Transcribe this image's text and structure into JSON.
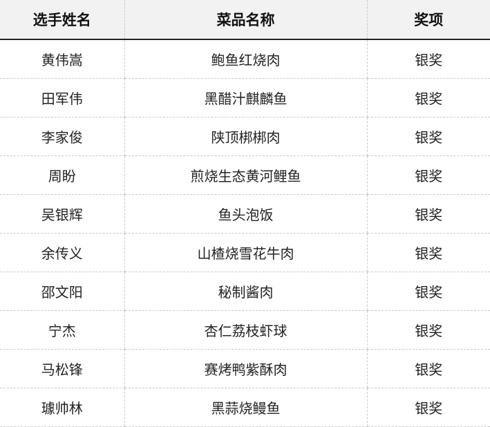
{
  "table": {
    "headers": [
      "选手姓名",
      "菜品名称",
      "奖项"
    ],
    "rows": [
      [
        "黄伟嵩",
        "鲍鱼红烧肉",
        "银奖"
      ],
      [
        "田军伟",
        "黑醋汁麒麟鱼",
        "银奖"
      ],
      [
        "李家俊",
        "陕顶梆梆肉",
        "银奖"
      ],
      [
        "周盼",
        "煎烧生态黄河鲤鱼",
        "银奖"
      ],
      [
        "吴银辉",
        "鱼头泡饭",
        "银奖"
      ],
      [
        "余传义",
        "山楂烧雪花牛肉",
        "银奖"
      ],
      [
        "邵文阳",
        "秘制酱肉",
        "银奖"
      ],
      [
        "宁杰",
        "杏仁荔枝虾球",
        "银奖"
      ],
      [
        "马松锋",
        "赛烤鸭紫酥肉",
        "银奖"
      ],
      [
        "璩帅林",
        "黑蒜烧鳗鱼",
        "银奖"
      ]
    ]
  }
}
